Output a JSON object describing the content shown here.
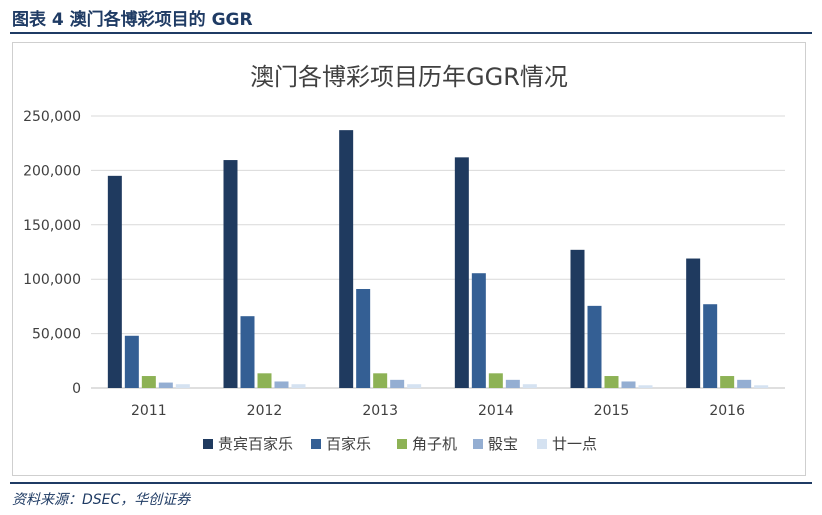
{
  "figure": {
    "label": "图表 4 澳门各博彩项目的 GGR",
    "source": "资料来源：DSEC，华创证券"
  },
  "chart_data": {
    "type": "bar",
    "title": "澳门各博彩项目历年GGR情况",
    "xlabel": "",
    "ylabel": "",
    "categories": [
      "2011",
      "2012",
      "2013",
      "2014",
      "2015",
      "2016"
    ],
    "ylim": [
      0,
      250000
    ],
    "yticks": [
      0,
      50000,
      100000,
      150000,
      200000,
      250000
    ],
    "ytick_labels": [
      "0",
      "50,000",
      "100,000",
      "150,000",
      "200,000",
      "250,000"
    ],
    "grid": true,
    "legend_position": "bottom",
    "series": [
      {
        "name": "贵宾百家乐",
        "color": "#1f3a5f",
        "values": [
          195000,
          209500,
          237000,
          212000,
          127000,
          119000
        ]
      },
      {
        "name": "百家乐",
        "color": "#345f94",
        "values": [
          48000,
          66000,
          91000,
          105500,
          75500,
          77000
        ]
      },
      {
        "name": "角子机",
        "color": "#8db255",
        "values": [
          11000,
          13500,
          13500,
          13500,
          11000,
          11000
        ]
      },
      {
        "name": "骰宝",
        "color": "#94aed2",
        "values": [
          5000,
          6000,
          7500,
          7500,
          6000,
          7500
        ]
      },
      {
        "name": "廿一点",
        "color": "#d5e2f1",
        "values": [
          3500,
          3500,
          3500,
          3500,
          2500,
          2500
        ]
      }
    ]
  }
}
